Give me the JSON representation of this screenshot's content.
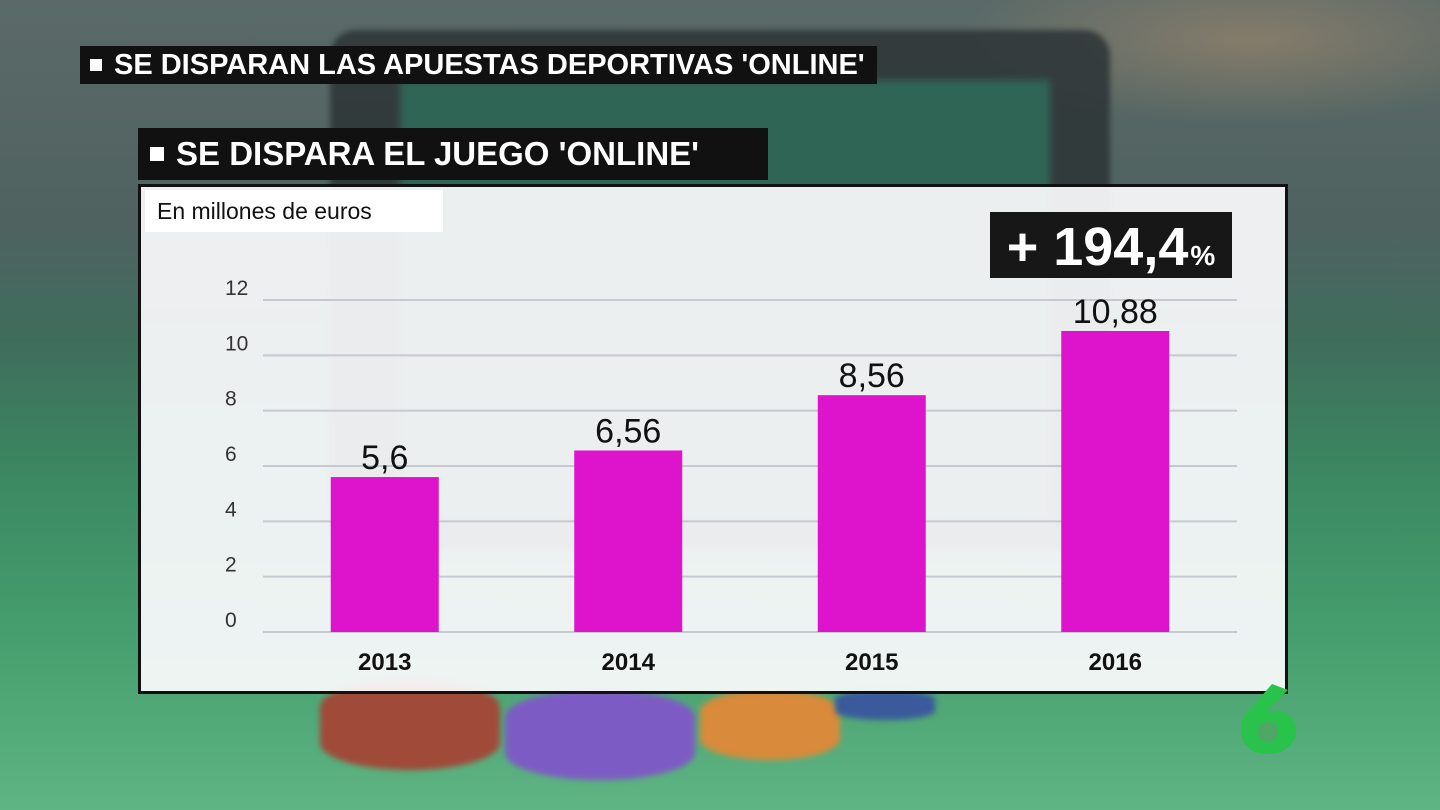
{
  "header": {
    "top_title": "SE DISPARAN LAS APUESTAS DEPORTIVAS 'ONLINE'",
    "sub_title": "SE DISPARA EL JUEGO 'ONLINE'"
  },
  "badge": {
    "value": "+ 194,4",
    "unit": "%"
  },
  "colors": {
    "bar": "#dd14cc",
    "grid": "#c8c8d0",
    "panel_border": "#111111",
    "logo": "#29c24a"
  },
  "logo_icon": "la-sexta-6-logo",
  "chart_data": {
    "type": "bar",
    "title": "",
    "ylabel": "En millones de euros",
    "xlabel": "",
    "categories": [
      "2013",
      "2014",
      "2015",
      "2016"
    ],
    "values": [
      5.6,
      6.56,
      8.56,
      10.88
    ],
    "value_labels": [
      "5,6",
      "6,56",
      "8,56",
      "10,88"
    ],
    "yticks": [
      0,
      2,
      4,
      6,
      8,
      10,
      12
    ],
    "ylim": [
      0,
      12
    ],
    "grid": true,
    "legend": "none"
  }
}
